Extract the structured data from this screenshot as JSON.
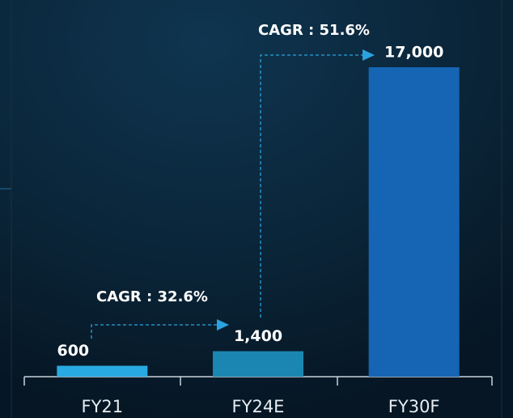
{
  "chart_data": {
    "type": "bar",
    "categories": [
      "FY21",
      "FY24E",
      "FY30F"
    ],
    "values": [
      600,
      1400,
      17000
    ],
    "value_labels": [
      "600",
      "1,400",
      "17,000"
    ],
    "colors": [
      "#29a9e1",
      "#1b86b2",
      "#1565b4"
    ],
    "annotations": [
      "CAGR : 32.6%",
      "CAGR : 51.6%"
    ]
  }
}
